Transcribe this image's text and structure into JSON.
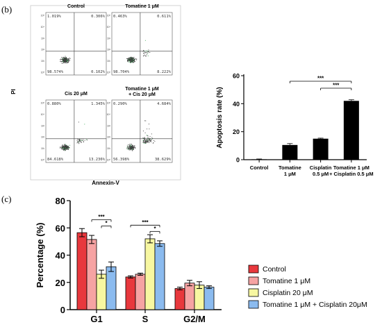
{
  "panel_labels": {
    "b": "(b)",
    "c": "(c)"
  },
  "flow": {
    "y_axis_label": "PI",
    "x_axis_label": "Annexin-V",
    "axis_ticks": [
      "10⁵",
      "10⁴",
      "10³",
      "10²",
      "10¹",
      "10⁰"
    ],
    "plots": [
      {
        "title": "Control",
        "q": [
          "1.019%",
          "0.306%",
          "98.574%",
          "0.102%"
        ]
      },
      {
        "title": "Tomatine 1 μM",
        "q": [
          "0.463%",
          "0.611%",
          "98.704%",
          "8.222%"
        ]
      },
      {
        "title": "Cis 20 μM",
        "q": [
          "0.880%",
          "1.345%",
          "84.618%",
          "13.236%"
        ]
      },
      {
        "title": "Tomatine 1 μM\n+ Cis 20 μM",
        "q": [
          "0.290%",
          "4.684%",
          "56.398%",
          "38.629%"
        ]
      }
    ],
    "colors": {
      "dots": "#3d3d3d",
      "accent": "#3fae5a"
    }
  },
  "chart_data": [
    {
      "type": "bar",
      "ylabel": "Apoptosis rate (%)",
      "xlabel": "",
      "ylim": [
        0,
        60
      ],
      "yticks": [
        0,
        20,
        40,
        60
      ],
      "categories": [
        "Control",
        "Tomatine\n1 μM",
        "Cisplatin\n0.5 μM",
        "Tomatine 1 μM\n+ Cisplatin  0.5 μM"
      ],
      "values": [
        0.3,
        10.5,
        15.0,
        42.0
      ],
      "errors": [
        0.2,
        1.0,
        0.4,
        0.8
      ],
      "color": "#000000",
      "significance": [
        {
          "from": 1,
          "to": 3,
          "label": "***"
        },
        {
          "from": 2,
          "to": 3,
          "label": "***"
        }
      ]
    },
    {
      "type": "bar",
      "ylabel": "Percentage (%)",
      "xlabel": "",
      "ylim": [
        0,
        80
      ],
      "yticks": [
        0,
        20,
        40,
        60,
        80
      ],
      "categories": [
        "G1",
        "S",
        "G2/M"
      ],
      "series": [
        {
          "name": "Control",
          "color": "#e8383d",
          "values": [
            56.5,
            24.0,
            15.5
          ],
          "errors": [
            3.0,
            0.8,
            1.0
          ]
        },
        {
          "name": "Tomatine 1 μM",
          "color": "#f6a3a3",
          "values": [
            51.5,
            26.0,
            19.5
          ],
          "errors": [
            3.0,
            0.8,
            2.0
          ]
        },
        {
          "name": "Cisplatin 20 μM",
          "color": "#f7f7a1",
          "values": [
            26.0,
            52.0,
            18.0
          ],
          "errors": [
            3.0,
            3.0,
            2.5
          ]
        },
        {
          "name": "Tomatine 1 μM + Cisplatin 20μM",
          "color": "#8bbbef",
          "values": [
            31.5,
            48.5,
            16.5
          ],
          "errors": [
            3.5,
            2.0,
            1.0
          ]
        }
      ],
      "significance": [
        {
          "group": 0,
          "from": 1,
          "to": 3,
          "label": "***"
        },
        {
          "group": 0,
          "from": 2,
          "to": 3,
          "label": "*"
        },
        {
          "group": 1,
          "from": 0,
          "to": 3,
          "label": "***"
        },
        {
          "group": 1,
          "from": 2,
          "to": 3,
          "label": "*"
        }
      ],
      "legend_position": "right"
    }
  ]
}
